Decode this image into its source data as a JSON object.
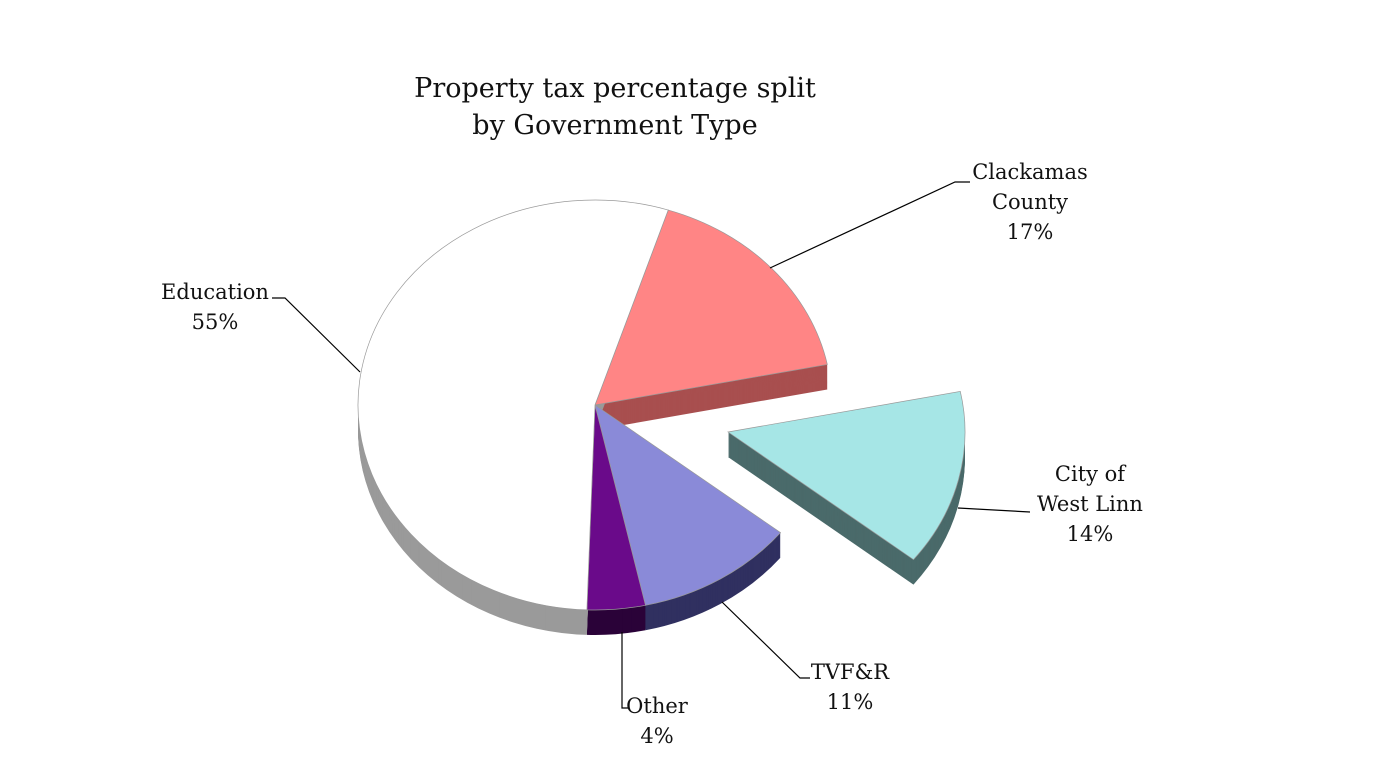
{
  "chart_data": {
    "type": "pie",
    "style": "3d-exploded",
    "title_lines": [
      "Property tax percentage split",
      "by Government Type"
    ],
    "start_angle_deg": 18,
    "direction": "clockwise",
    "slices": [
      {
        "name_lines": [
          "Clackamas",
          "County"
        ],
        "value": 17,
        "label": "17%",
        "color": "#ff8585",
        "side_color": "#a84f4f",
        "exploded": false
      },
      {
        "name_lines": [
          "City of",
          "West Linn"
        ],
        "value": 14,
        "label": "14%",
        "color": "#a6e6e6",
        "side_color": "#4a6a6a",
        "exploded": true
      },
      {
        "name_lines": [
          "TVF&R"
        ],
        "value": 11,
        "label": "11%",
        "color": "#8a8ad8",
        "side_color": "#303060",
        "exploded": false
      },
      {
        "name_lines": [
          "Other"
        ],
        "value": 4,
        "label": "4%",
        "color": "#6a0a8a",
        "side_color": "#2a0238",
        "exploded": false
      },
      {
        "name_lines": [
          "Education"
        ],
        "value": 55,
        "label": "55%",
        "color": "#ffffff",
        "side_color": "#9a9a9a",
        "exploded": false
      }
    ]
  }
}
